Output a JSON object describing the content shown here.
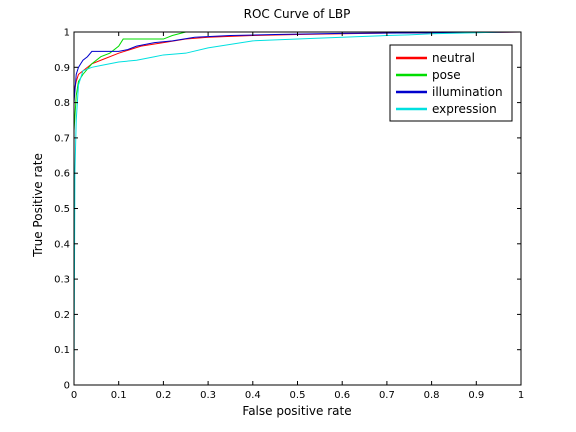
{
  "chart_data": {
    "type": "line",
    "title": "ROC Curve of LBP",
    "xlabel": "False positive rate",
    "ylabel": "True Positive rate",
    "xlim": [
      0,
      1
    ],
    "ylim": [
      0,
      1
    ],
    "xticks": [
      "0",
      "0.1",
      "0.2",
      "0.3",
      "0.4",
      "0.5",
      "0.6",
      "0.7",
      "0.8",
      "0.9",
      "1"
    ],
    "yticks": [
      "0",
      "0.1",
      "0.2",
      "0.3",
      "0.4",
      "0.5",
      "0.6",
      "0.7",
      "0.8",
      "0.9",
      "1"
    ],
    "grid": false,
    "legend_position": "top-right",
    "series": [
      {
        "name": "neutral",
        "color": "#ff0000",
        "x": [
          0,
          0.005,
          0.01,
          0.02,
          0.04,
          0.06,
          0.1,
          0.15,
          0.2,
          0.25,
          0.3,
          0.4,
          0.5,
          0.6,
          0.7,
          0.8,
          0.9,
          1
        ],
        "y": [
          0.83,
          0.86,
          0.88,
          0.89,
          0.91,
          0.92,
          0.94,
          0.96,
          0.97,
          0.98,
          0.985,
          0.99,
          0.993,
          0.995,
          0.997,
          0.998,
          0.999,
          1
        ]
      },
      {
        "name": "pose",
        "color": "#00dd00",
        "x": [
          0,
          0.005,
          0.01,
          0.02,
          0.04,
          0.06,
          0.08,
          0.1,
          0.11,
          0.2,
          0.22,
          0.25,
          0.4,
          0.6,
          0.8,
          1
        ],
        "y": [
          0.72,
          0.82,
          0.86,
          0.88,
          0.91,
          0.93,
          0.94,
          0.96,
          0.98,
          0.98,
          0.99,
          1,
          1,
          1,
          1,
          1
        ]
      },
      {
        "name": "illumination",
        "color": "#0000cc",
        "x": [
          0,
          0.005,
          0.01,
          0.015,
          0.02,
          0.03,
          0.04,
          0.06,
          0.08,
          0.1,
          0.12,
          0.14,
          0.18,
          0.22,
          0.27,
          0.35,
          0.45,
          0.6,
          0.8,
          1
        ],
        "y": [
          0.8,
          0.88,
          0.9,
          0.91,
          0.92,
          0.93,
          0.945,
          0.945,
          0.945,
          0.945,
          0.95,
          0.96,
          0.97,
          0.975,
          0.985,
          0.99,
          0.993,
          0.996,
          0.998,
          1
        ]
      },
      {
        "name": "expression",
        "color": "#00e0e0",
        "x": [
          0,
          0.002,
          0.005,
          0.01,
          0.02,
          0.04,
          0.06,
          0.08,
          0.1,
          0.14,
          0.18,
          0.2,
          0.25,
          0.3,
          0.35,
          0.4,
          0.5,
          0.6,
          0.7,
          0.75,
          0.8,
          0.9,
          0.96,
          1
        ],
        "y": [
          0,
          0.6,
          0.75,
          0.85,
          0.89,
          0.9,
          0.905,
          0.91,
          0.915,
          0.92,
          0.93,
          0.935,
          0.94,
          0.955,
          0.965,
          0.975,
          0.98,
          0.985,
          0.99,
          0.992,
          0.995,
          0.998,
          1,
          1
        ]
      }
    ]
  }
}
